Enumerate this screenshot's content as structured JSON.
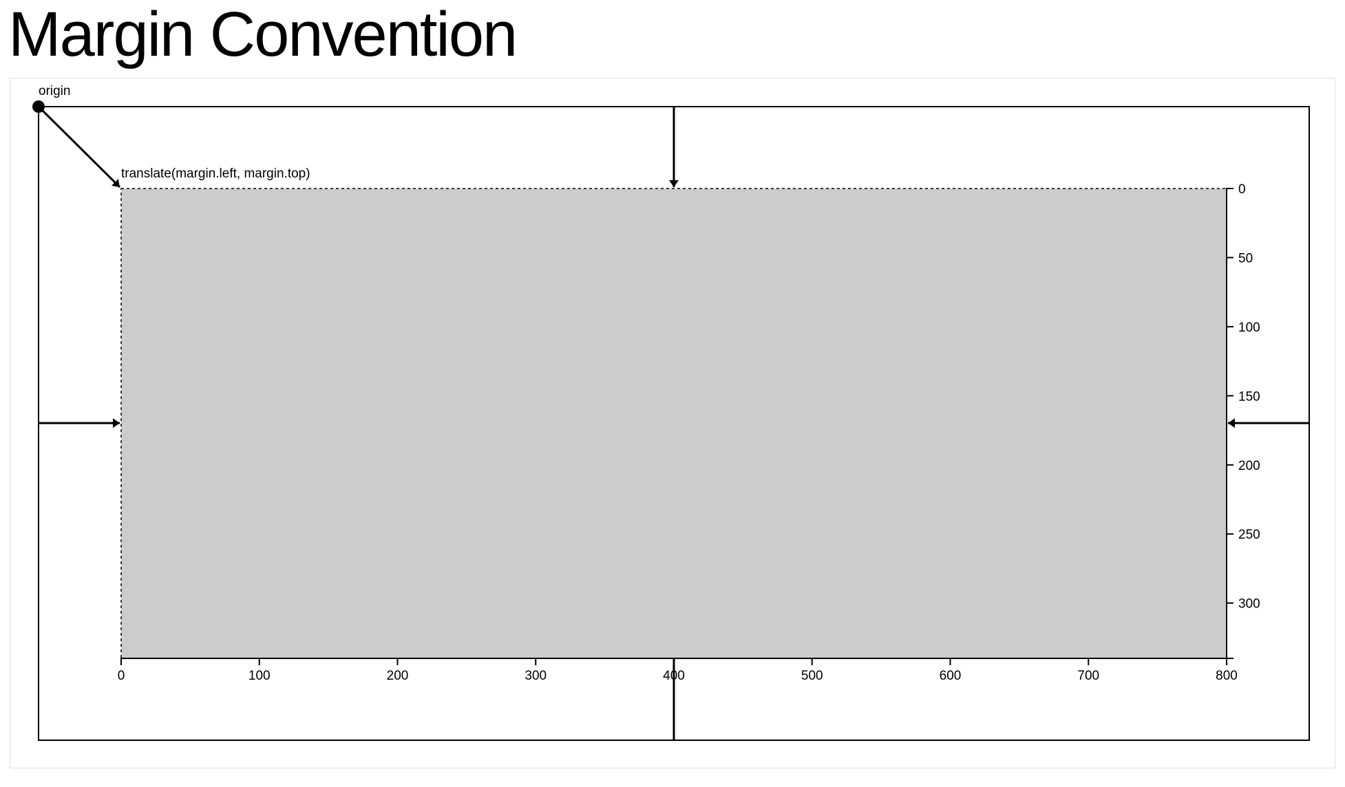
{
  "page": {
    "title": "Margin Convention"
  },
  "diagram": {
    "origin_label": "origin",
    "translate_label": "translate(margin.left, margin.top)",
    "plot_fill": "#cccccc",
    "stroke": "#000000"
  },
  "chart_data": {
    "type": "axes",
    "x_axis": {
      "position": "bottom",
      "domain": [
        0,
        800
      ],
      "ticks": [
        0,
        100,
        200,
        300,
        400,
        500,
        600,
        700,
        800
      ]
    },
    "y_axis": {
      "position": "right",
      "domain": [
        0,
        340
      ],
      "ticks": [
        0,
        50,
        100,
        150,
        200,
        250,
        300
      ]
    }
  }
}
